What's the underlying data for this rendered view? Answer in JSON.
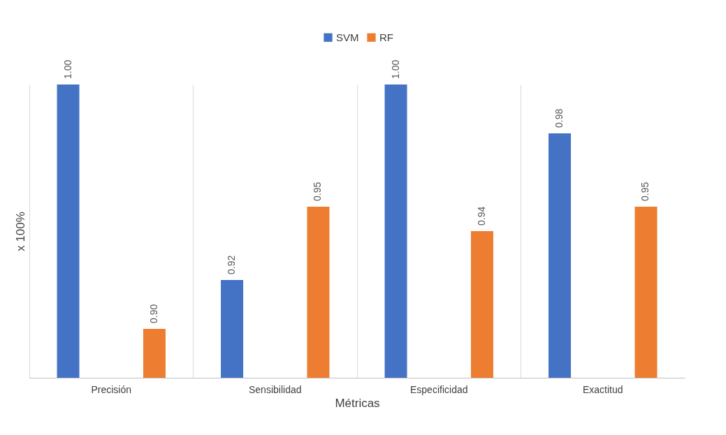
{
  "chart_data": {
    "type": "bar",
    "ylabel": "x 100%",
    "xlabel": "Métricas",
    "categories": [
      "Precisión",
      "Sensibilidad",
      "Especificidad",
      "Exactitud"
    ],
    "series": [
      {
        "name": "SVM",
        "color": "#4472c4",
        "values": [
          1.0,
          0.92,
          1.0,
          0.98
        ],
        "value_labels": [
          "1.00",
          "0.92",
          "1.00",
          "0.98"
        ]
      },
      {
        "name": "RF",
        "color": "#ed7d31",
        "values": [
          0.9,
          0.95,
          0.94,
          0.95
        ],
        "value_labels": [
          "0.90",
          "0.95",
          "0.94",
          "0.95"
        ]
      }
    ],
    "ylim": [
      0.88,
      1.0
    ],
    "legend": "top",
    "grid": "x",
    "tick_labels": "x"
  }
}
